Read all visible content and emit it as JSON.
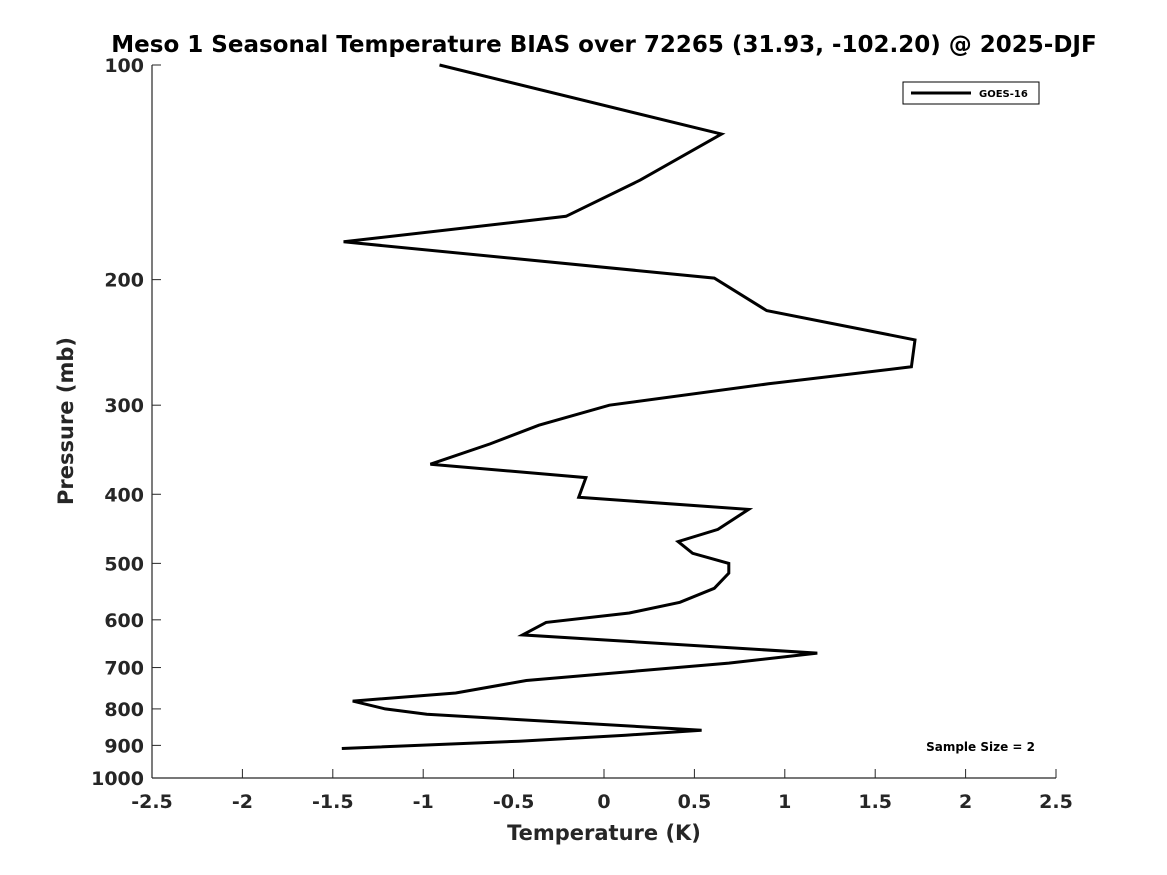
{
  "chart_data": {
    "type": "line",
    "title": "Meso 1 Seasonal Temperature BIAS over 72265 (31.93, -102.20) @ 2025-DJF",
    "xlabel": "Temperature (K)",
    "ylabel": "Pressure (mb)",
    "xlim": [
      -2.5,
      2.5
    ],
    "ylim": [
      100,
      1000
    ],
    "y_scale": "log",
    "y_reversed": true,
    "grid": false,
    "legend_position": "top-right",
    "x_ticks": [
      -2.5,
      -2,
      -1.5,
      -1,
      -0.5,
      0,
      0.5,
      1,
      1.5,
      2,
      2.5
    ],
    "x_tick_labels": [
      "-2.5",
      "-2",
      "-1.5",
      "-1",
      "-0.5",
      "0",
      "0.5",
      "1",
      "1.5",
      "2",
      "2.5"
    ],
    "y_ticks": [
      100,
      200,
      300,
      400,
      500,
      600,
      700,
      800,
      900,
      1000
    ],
    "y_tick_labels": [
      "100",
      "200",
      "300",
      "400",
      "500",
      "600",
      "700",
      "800",
      "900",
      "1000"
    ],
    "annotation": "Sample Size = 2",
    "series": [
      {
        "name": "GOES-16",
        "color": "#000000",
        "points": [
          [
            -0.91,
            100
          ],
          [
            0.65,
            125
          ],
          [
            0.2,
            145
          ],
          [
            -0.21,
            163
          ],
          [
            -1.44,
            177
          ],
          [
            0.61,
            199
          ],
          [
            0.9,
            221
          ],
          [
            1.72,
            243
          ],
          [
            1.7,
            265
          ],
          [
            0.91,
            280
          ],
          [
            0.03,
            300
          ],
          [
            -0.36,
            320
          ],
          [
            -0.63,
            340
          ],
          [
            -0.96,
            363
          ],
          [
            -0.1,
            379
          ],
          [
            -0.14,
            404
          ],
          [
            0.8,
            420
          ],
          [
            0.63,
            448
          ],
          [
            0.41,
            466
          ],
          [
            0.49,
            484
          ],
          [
            0.69,
            500
          ],
          [
            0.69,
            516
          ],
          [
            0.61,
            542
          ],
          [
            0.42,
            567
          ],
          [
            0.14,
            587
          ],
          [
            -0.32,
            605
          ],
          [
            -0.45,
            630
          ],
          [
            1.18,
            668
          ],
          [
            0.69,
            690
          ],
          [
            -0.43,
            730
          ],
          [
            -0.82,
            760
          ],
          [
            -1.39,
            780
          ],
          [
            -1.21,
            800
          ],
          [
            -0.98,
            814
          ],
          [
            0.54,
            857
          ],
          [
            0.12,
            871
          ],
          [
            -0.47,
            888
          ],
          [
            -1.45,
            909
          ]
        ]
      }
    ]
  }
}
